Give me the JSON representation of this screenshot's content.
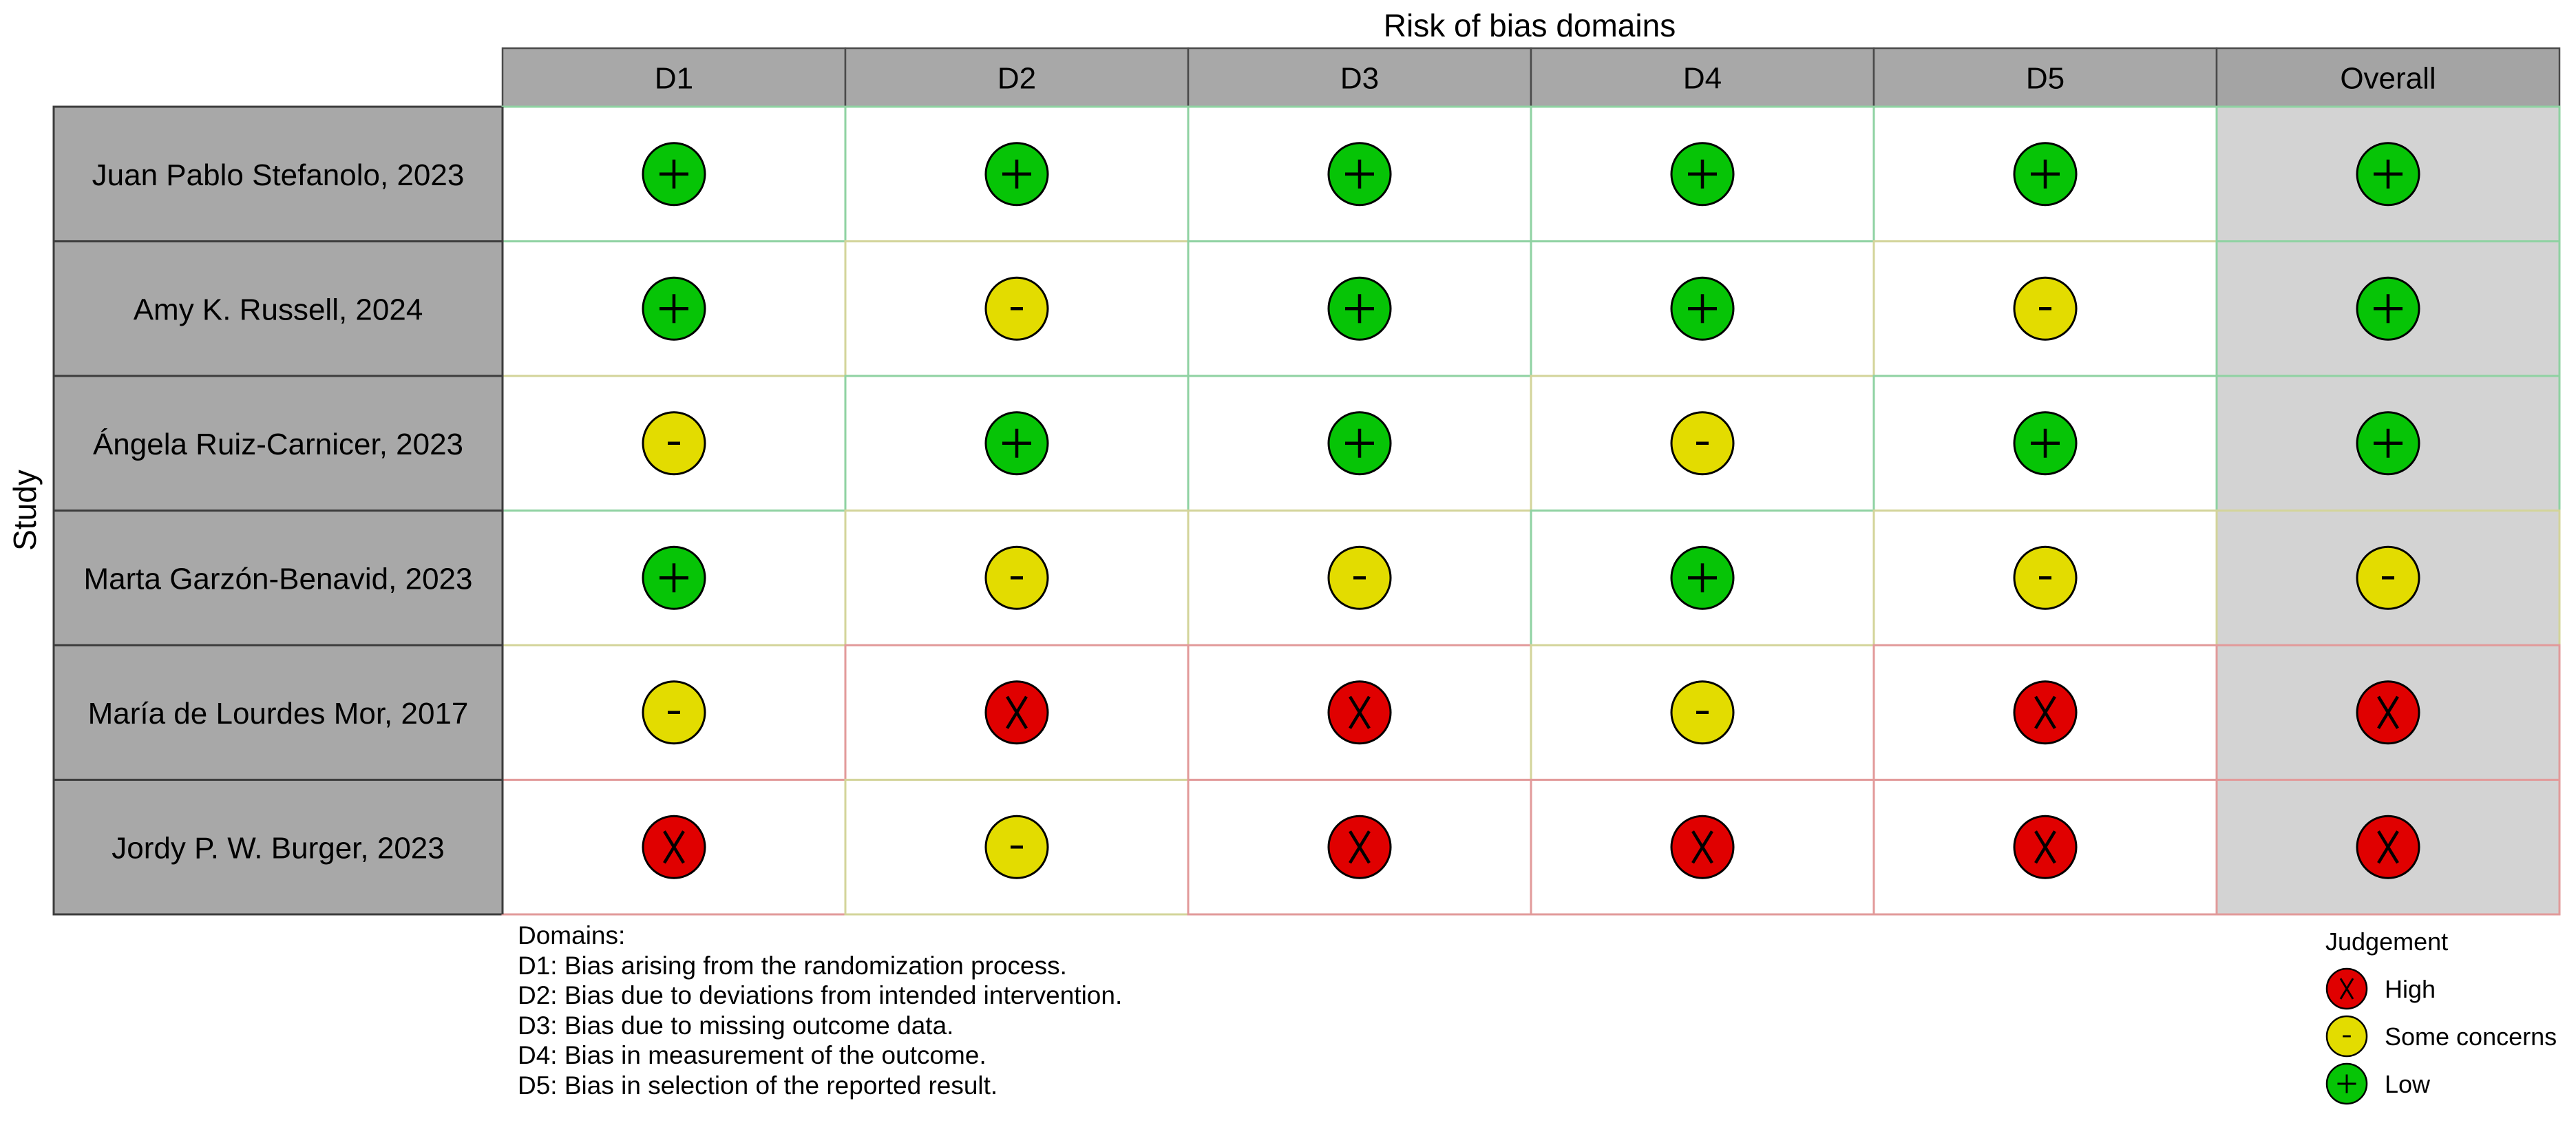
{
  "chart_data": {
    "type": "table",
    "title": "Risk of bias domains",
    "ylabel": "Study",
    "columns": [
      "D1",
      "D2",
      "D3",
      "D4",
      "D5",
      "Overall"
    ],
    "rows": [
      {
        "study": "Juan Pablo Stefanolo, 2023",
        "judgements": [
          "Low",
          "Low",
          "Low",
          "Low",
          "Low",
          "Low"
        ]
      },
      {
        "study": "Amy K. Russell, 2024",
        "judgements": [
          "Low",
          "Some concerns",
          "Low",
          "Low",
          "Some concerns",
          "Low"
        ]
      },
      {
        "study": "Ángela Ruiz-Carnicer, 2023",
        "judgements": [
          "Some concerns",
          "Low",
          "Low",
          "Some concerns",
          "Low",
          "Low"
        ]
      },
      {
        "study": "Marta Garzón-Benavid, 2023",
        "judgements": [
          "Low",
          "Some concerns",
          "Some concerns",
          "Low",
          "Some concerns",
          "Some concerns"
        ]
      },
      {
        "study": "María de Lourdes Mor, 2017",
        "judgements": [
          "Some concerns",
          "High",
          "High",
          "Some concerns",
          "High",
          "High"
        ]
      },
      {
        "study": "Jordy P. W. Burger, 2023",
        "judgements": [
          "High",
          "Some concerns",
          "High",
          "High",
          "High",
          "High"
        ]
      }
    ],
    "legend": {
      "title": "Judgement",
      "placement": "bottom-right",
      "items": [
        {
          "label": "High",
          "symbol": "X",
          "color": "#e00000"
        },
        {
          "label": "Some concerns",
          "symbol": "-",
          "color": "#e3dc00"
        },
        {
          "label": "Low",
          "symbol": "+",
          "color": "#06c406"
        }
      ]
    },
    "domains_note": {
      "heading": "Domains:",
      "lines": [
        "D1: Bias arising from the randomization process.",
        "D2: Bias due to deviations from intended intervention.",
        "D3: Bias due to missing outcome data.",
        "D4: Bias in measurement of the outcome.",
        "D5: Bias in selection of the reported result."
      ]
    }
  }
}
